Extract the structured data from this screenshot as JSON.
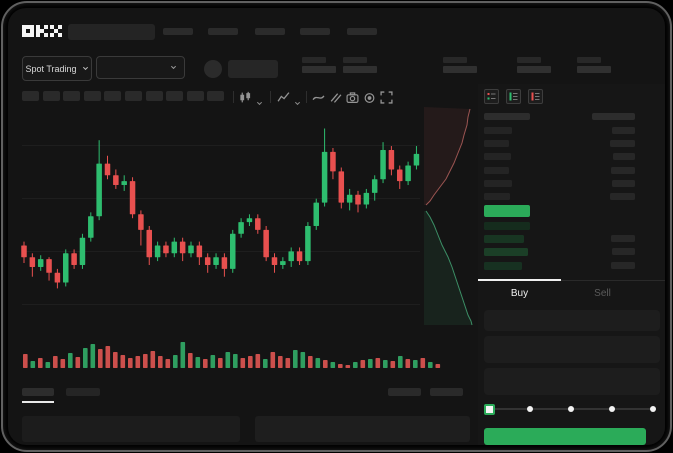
{
  "app": {
    "brand": "OKX"
  },
  "colors": {
    "candle_up": "#2ebd6f",
    "candle_down": "#e8504f",
    "volume_up": "#2f9e60",
    "volume_down": "#cc4f4c",
    "accent_green": "#2bab59",
    "depth_ask_line": "#9c5552",
    "depth_bid_line": "#3c8f66",
    "bid_row_shades": [
      "#152c1d",
      "#183522",
      "#1b3f27",
      "#173121"
    ]
  },
  "trade_panel": {
    "market_selector_label": "Spot Trading",
    "buy_tab_label": "Buy",
    "sell_tab_label": "Sell",
    "active_tab": "Buy",
    "slider": {
      "positions_pct": [
        0,
        25,
        50,
        75,
        100
      ],
      "value_pct": 0
    }
  },
  "orderbook": {
    "view_options": [
      "combined-book",
      "bids-only-book",
      "asks-only-book"
    ],
    "asks": [
      {
        "l": 28,
        "r": 23
      },
      {
        "l": 25,
        "r": 25
      },
      {
        "l": 27,
        "r": 22
      },
      {
        "l": 25,
        "r": 24
      },
      {
        "l": 28,
        "r": 23
      },
      {
        "l": 26,
        "r": 25
      }
    ],
    "bids": [
      {
        "l": 46,
        "r": 0
      },
      {
        "l": 40,
        "r": 24
      },
      {
        "l": 44,
        "r": 23
      },
      {
        "l": 38,
        "r": 24
      }
    ]
  },
  "chart_data": {
    "type": "candlestick",
    "title": "",
    "xlabel": "",
    "ylabel": "",
    "value_range": [
      0,
      100
    ],
    "grid": true,
    "candles": [
      [
        30,
        24,
        32,
        21
      ],
      [
        24,
        19,
        26,
        14
      ],
      [
        19,
        23,
        25,
        17
      ],
      [
        23,
        16,
        24,
        12
      ],
      [
        16,
        11,
        18,
        8
      ],
      [
        11,
        26,
        28,
        9
      ],
      [
        26,
        20,
        28,
        18
      ],
      [
        20,
        34,
        36,
        18
      ],
      [
        34,
        45,
        47,
        32
      ],
      [
        45,
        72,
        84,
        43
      ],
      [
        72,
        66,
        76,
        64
      ],
      [
        66,
        61,
        69,
        59
      ],
      [
        61,
        63,
        66,
        58
      ],
      [
        63,
        46,
        65,
        44
      ],
      [
        46,
        38,
        48,
        30
      ],
      [
        38,
        24,
        40,
        20
      ],
      [
        24,
        30,
        32,
        22
      ],
      [
        30,
        26,
        32,
        24
      ],
      [
        26,
        32,
        34,
        24
      ],
      [
        32,
        26,
        34,
        22
      ],
      [
        26,
        30,
        32,
        24
      ],
      [
        30,
        24,
        32,
        20
      ],
      [
        24,
        20,
        26,
        16
      ],
      [
        20,
        24,
        26,
        18
      ],
      [
        24,
        18,
        26,
        14
      ],
      [
        18,
        36,
        38,
        16
      ],
      [
        36,
        42,
        44,
        34
      ],
      [
        42,
        44,
        46,
        40
      ],
      [
        44,
        38,
        46,
        36
      ],
      [
        38,
        24,
        40,
        22
      ],
      [
        24,
        20,
        26,
        16
      ],
      [
        20,
        22,
        24,
        18
      ],
      [
        22,
        27,
        29,
        19
      ],
      [
        27,
        22,
        29,
        20
      ],
      [
        22,
        40,
        42,
        20
      ],
      [
        40,
        52,
        54,
        38
      ],
      [
        52,
        78,
        90,
        50
      ],
      [
        78,
        68,
        80,
        64
      ],
      [
        68,
        52,
        70,
        49
      ],
      [
        52,
        56,
        59,
        48
      ],
      [
        56,
        51,
        58,
        47
      ],
      [
        51,
        57,
        59,
        49
      ],
      [
        57,
        64,
        66,
        53
      ],
      [
        64,
        79,
        83,
        62
      ],
      [
        79,
        69,
        81,
        66
      ],
      [
        69,
        63,
        71,
        59
      ],
      [
        63,
        71,
        73,
        61
      ],
      [
        71,
        77,
        81,
        69
      ]
    ],
    "volume": [
      [
        14,
        "r"
      ],
      [
        7,
        "g"
      ],
      [
        10,
        "r"
      ],
      [
        6,
        "g"
      ],
      [
        12,
        "r"
      ],
      [
        9,
        "r"
      ],
      [
        15,
        "g"
      ],
      [
        11,
        "r"
      ],
      [
        20,
        "g"
      ],
      [
        24,
        "g"
      ],
      [
        19,
        "r"
      ],
      [
        22,
        "r"
      ],
      [
        16,
        "r"
      ],
      [
        13,
        "r"
      ],
      [
        10,
        "r"
      ],
      [
        12,
        "r"
      ],
      [
        14,
        "r"
      ],
      [
        17,
        "r"
      ],
      [
        12,
        "r"
      ],
      [
        9,
        "r"
      ],
      [
        13,
        "g"
      ],
      [
        26,
        "g"
      ],
      [
        15,
        "r"
      ],
      [
        11,
        "g"
      ],
      [
        9,
        "r"
      ],
      [
        13,
        "g"
      ],
      [
        10,
        "r"
      ],
      [
        16,
        "g"
      ],
      [
        14,
        "g"
      ],
      [
        10,
        "r"
      ],
      [
        12,
        "r"
      ],
      [
        14,
        "r"
      ],
      [
        9,
        "g"
      ],
      [
        16,
        "r"
      ],
      [
        12,
        "r"
      ],
      [
        10,
        "r"
      ],
      [
        18,
        "g"
      ],
      [
        16,
        "g"
      ],
      [
        12,
        "r"
      ],
      [
        10,
        "g"
      ],
      [
        8,
        "r"
      ],
      [
        6,
        "g"
      ],
      [
        4,
        "r"
      ],
      [
        3,
        "r"
      ],
      [
        6,
        "g"
      ],
      [
        8,
        "r"
      ],
      [
        9,
        "g"
      ],
      [
        10,
        "r"
      ],
      [
        8,
        "g"
      ],
      [
        7,
        "r"
      ],
      [
        12,
        "g"
      ],
      [
        9,
        "r"
      ],
      [
        8,
        "g"
      ],
      [
        10,
        "r"
      ],
      [
        6,
        "g"
      ],
      [
        4,
        "r"
      ]
    ],
    "depth": {
      "asks_line": [
        [
          46,
          2
        ],
        [
          44,
          10
        ],
        [
          43,
          18
        ],
        [
          40,
          28
        ],
        [
          38,
          36
        ],
        [
          34,
          46
        ],
        [
          30,
          56
        ],
        [
          26,
          64
        ],
        [
          22,
          72
        ],
        [
          16,
          80
        ],
        [
          10,
          88
        ],
        [
          6,
          94
        ],
        [
          2,
          98
        ]
      ],
      "bids_line": [
        [
          2,
          104
        ],
        [
          6,
          110
        ],
        [
          10,
          118
        ],
        [
          14,
          128
        ],
        [
          18,
          138
        ],
        [
          24,
          150
        ],
        [
          28,
          160
        ],
        [
          32,
          172
        ],
        [
          36,
          184
        ],
        [
          40,
          196
        ],
        [
          44,
          208
        ],
        [
          47,
          214
        ],
        [
          48,
          218
        ]
      ]
    }
  }
}
